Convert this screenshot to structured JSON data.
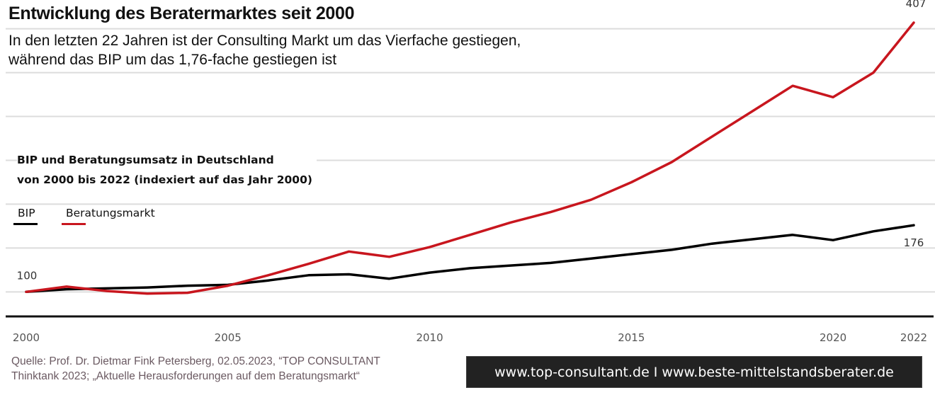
{
  "header": {
    "title": "Entwicklung des Beratermarktes seit 2000",
    "subtitle_line1": "In den letzten 22 Jahren ist der Consulting Markt um das Vierfache gestiegen,",
    "subtitle_line2": "während das BIP um das 1,76-fache gestiegen ist"
  },
  "chart_data": {
    "type": "line",
    "title": "BIP und Beratungsumsatz in Deutschland",
    "subtitle": "von 2000 bis 2022 (indexiert auf das Jahr 2000)",
    "xlabel": "",
    "ylabel": "",
    "x": [
      2000,
      2001,
      2002,
      2003,
      2004,
      2005,
      2006,
      2007,
      2008,
      2009,
      2010,
      2011,
      2012,
      2013,
      2014,
      2015,
      2016,
      2017,
      2018,
      2019,
      2020,
      2021,
      2022
    ],
    "x_tick_labels": [
      "2000",
      "2005",
      "2010",
      "2015",
      "2020",
      "2022"
    ],
    "x_ticks": [
      2000,
      2005,
      2010,
      2015,
      2020,
      2022
    ],
    "xlim": [
      2000,
      2022
    ],
    "ylim": [
      72,
      407
    ],
    "y_gridlines": [
      100,
      150,
      200,
      250,
      300,
      350,
      400
    ],
    "grid": true,
    "legend_position": "top-left",
    "series": [
      {
        "name": "BIP",
        "color": "#000000",
        "values": [
          100,
          103,
          104,
          105,
          107,
          108,
          113,
          119,
          120,
          115,
          122,
          127,
          130,
          133,
          138,
          143,
          148,
          155,
          160,
          165,
          159,
          169,
          176
        ]
      },
      {
        "name": "Beratungsmarkt",
        "color": "#c8161e",
        "values": [
          100,
          106,
          101,
          98,
          99,
          107,
          119,
          132,
          146,
          140,
          151,
          165,
          179,
          191,
          205,
          225,
          248,
          277,
          306,
          335,
          322,
          350,
          407
        ]
      }
    ],
    "annotations": [
      {
        "text": "100",
        "series": "BIP",
        "x": 2000,
        "position": "above"
      },
      {
        "text": "176",
        "series": "BIP",
        "x": 2022,
        "position": "below"
      },
      {
        "text": "407",
        "series": "Beratungsmarkt",
        "x": 2022,
        "position": "above"
      }
    ]
  },
  "legend": {
    "items": [
      {
        "label": "BIP",
        "color": "#000000"
      },
      {
        "label": "Beratungsmarkt",
        "color": "#c8161e"
      }
    ]
  },
  "footer": {
    "source_line1": "Quelle: Prof. Dr. Dietmar Fink Petersberg, 02.05.2023, “TOP CONSULTANT",
    "source_line2": "Thinktank 2023; „Aktuelle Herausforderungen auf dem Beratungsmarkt“",
    "urls": "www.top-consultant.de  I  www.beste-mittelstandsberater.de"
  }
}
